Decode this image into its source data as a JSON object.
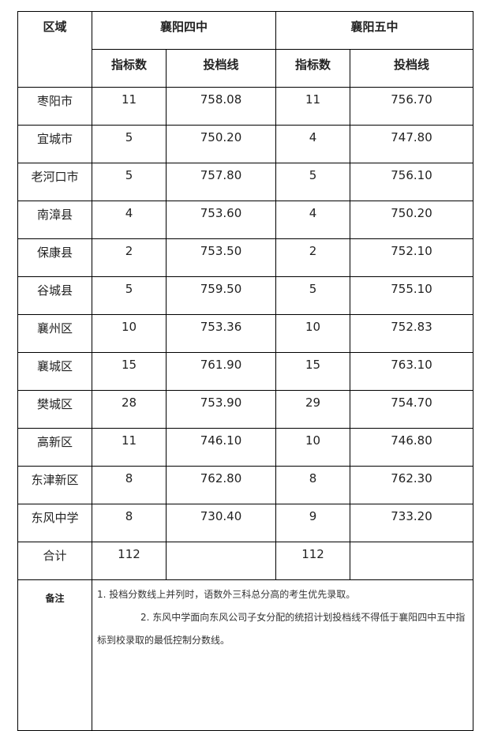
{
  "header": {
    "region": "区域",
    "school1": "襄阳四中",
    "school2": "襄阳五中",
    "quota": "指标数",
    "cutoff": "投档线"
  },
  "rows": [
    {
      "region": "枣阳市",
      "q1": "11",
      "c1": "758.08",
      "q2": "11",
      "c2": "756.70"
    },
    {
      "region": "宜城市",
      "q1": "5",
      "c1": "750.20",
      "q2": "4",
      "c2": "747.80"
    },
    {
      "region": "老河口市",
      "q1": "5",
      "c1": "757.80",
      "q2": "5",
      "c2": "756.10"
    },
    {
      "region": "南漳县",
      "q1": "4",
      "c1": "753.60",
      "q2": "4",
      "c2": "750.20"
    },
    {
      "region": "保康县",
      "q1": "2",
      "c1": "753.50",
      "q2": "2",
      "c2": "752.10"
    },
    {
      "region": "谷城县",
      "q1": "5",
      "c1": "759.50",
      "q2": "5",
      "c2": "755.10"
    },
    {
      "region": "襄州区",
      "q1": "10",
      "c1": "753.36",
      "q2": "10",
      "c2": "752.83"
    },
    {
      "region": "襄城区",
      "q1": "15",
      "c1": "761.90",
      "q2": "15",
      "c2": "763.10"
    },
    {
      "region": "樊城区",
      "q1": "28",
      "c1": "753.90",
      "q2": "29",
      "c2": "754.70"
    },
    {
      "region": "高新区",
      "q1": "11",
      "c1": "746.10",
      "q2": "10",
      "c2": "746.80"
    },
    {
      "region": "东津新区",
      "q1": "8",
      "c1": "762.80",
      "q2": "8",
      "c2": "762.30"
    },
    {
      "region": "东风中学",
      "q1": "8",
      "c1": "730.40",
      "q2": "9",
      "c2": "733.20"
    }
  ],
  "total": {
    "label": "合计",
    "q1": "112",
    "c1": "",
    "q2": "112",
    "c2": ""
  },
  "notes": {
    "label": "备注",
    "line1": "1. 投档分数线上并列时，语数外三科总分高的考生优先录取。",
    "line2": "2. 东风中学面向东风公司子女分配的统招计划投档线不得低于襄阳四中五中指标到校录取的最低控制分数线。"
  }
}
